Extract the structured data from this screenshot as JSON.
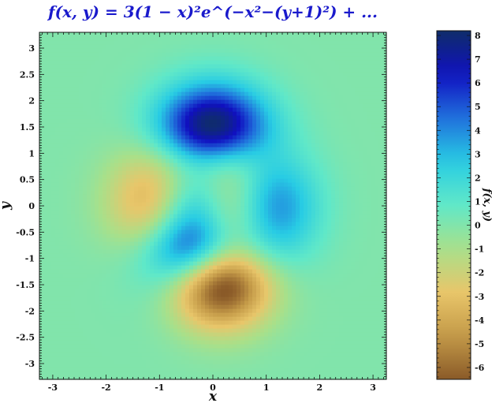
{
  "chart_data": {
    "type": "heatmap",
    "title": "f(x, y) = 3(1 − x)²e^(−x²−(y+1)²) + ...",
    "xlabel": "x",
    "ylabel": "y",
    "colorbar_label": "f(x, y)",
    "function": "peaks",
    "xlim": [
      -3.25,
      3.25
    ],
    "ylim": [
      -3.3,
      3.3
    ],
    "clim": [
      -6.5,
      8.2
    ],
    "x_ticks": [
      "-3",
      "-2",
      "-1",
      "0",
      "1",
      "2",
      "3"
    ],
    "y_ticks": [
      "3",
      "2.5",
      "2",
      "1.5",
      "1",
      "0.5",
      "0",
      "-0.5",
      "-1",
      "-1.5",
      "-2",
      "-2.5",
      "-3"
    ],
    "colorbar_ticks": [
      "8",
      "7",
      "6",
      "5",
      "4",
      "3",
      "2",
      "1",
      "0",
      "-1",
      "-2",
      "-3",
      "-4",
      "-5",
      "-6"
    ],
    "grid": false,
    "colormap": [
      "#8a5a28",
      "#c49a48",
      "#e8c66a",
      "#a8e08a",
      "#60e8c8",
      "#28cce4",
      "#2070dc",
      "#1010c0",
      "#0f2d6a"
    ]
  }
}
